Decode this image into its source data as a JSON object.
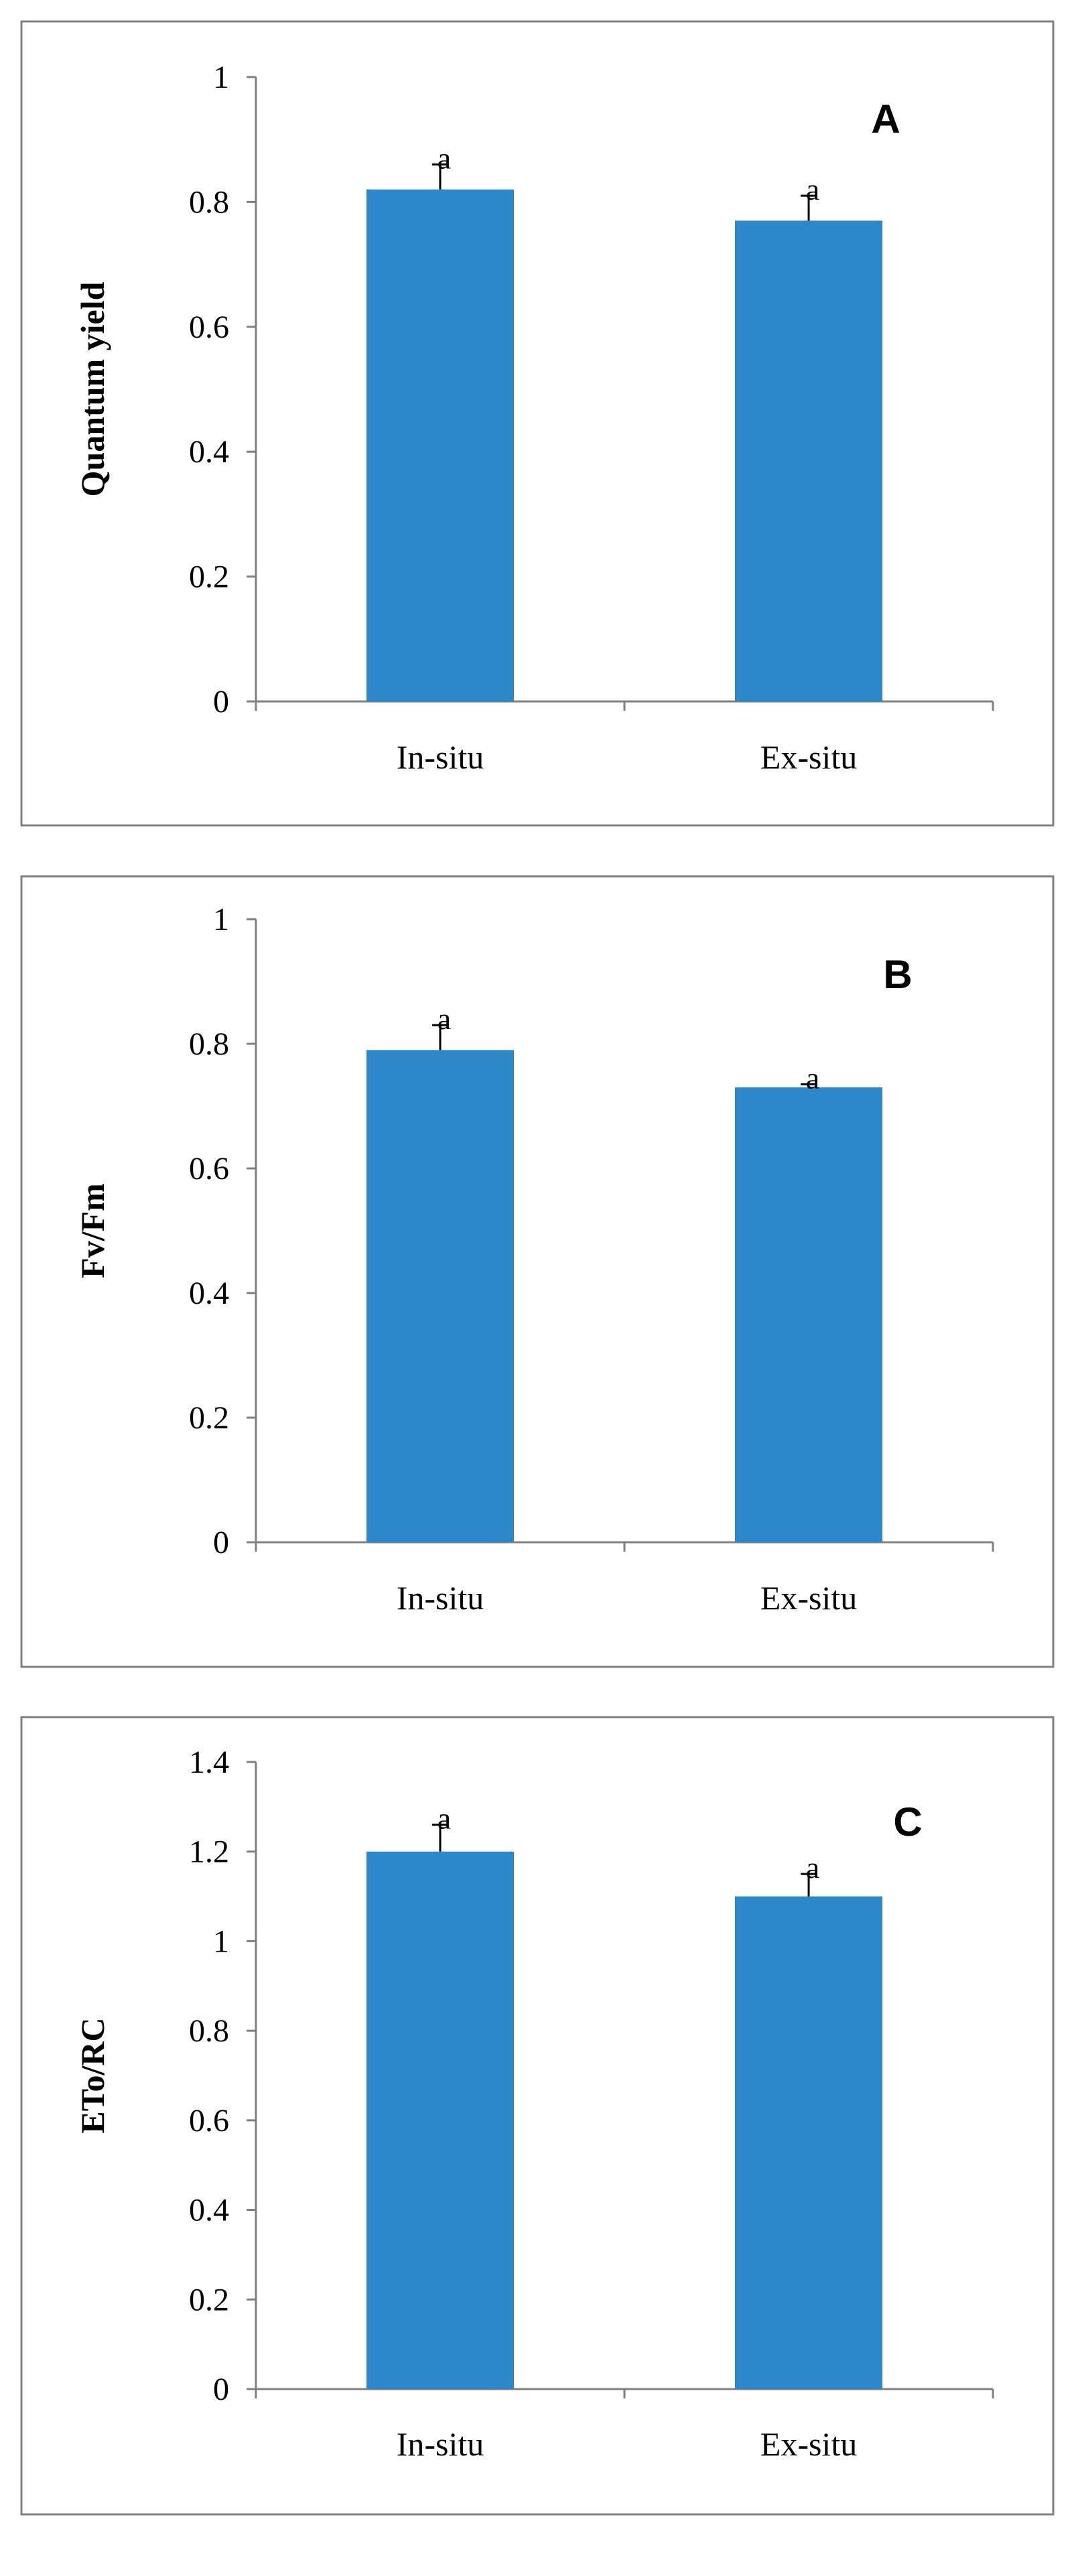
{
  "colors": {
    "bar": "#2e87c8",
    "axis": "#808080",
    "frame": "#808080",
    "text": "#000000"
  },
  "chart_data": [
    {
      "type": "bar",
      "panel_label": "A",
      "ylabel": "Quantum yield",
      "xlabel": "",
      "categories": [
        "In-situ",
        "Ex-situ"
      ],
      "values": [
        0.82,
        0.77
      ],
      "errors": [
        0.04,
        0.04
      ],
      "annotations": [
        "a",
        "a"
      ],
      "ylim": [
        0,
        1
      ],
      "yticks": [
        0,
        0.2,
        0.4,
        0.6,
        0.8,
        1
      ],
      "ytick_labels": [
        "0",
        "0.2",
        "0.4",
        "0.6",
        "0.8",
        "1"
      ],
      "grid": false
    },
    {
      "type": "bar",
      "panel_label": "B",
      "ylabel": "Fv/Fm",
      "xlabel": "",
      "categories": [
        "In-situ",
        "Ex-situ"
      ],
      "values": [
        0.79,
        0.73
      ],
      "errors": [
        0.04,
        0.005
      ],
      "annotations": [
        "a",
        "a"
      ],
      "ylim": [
        0,
        1
      ],
      "yticks": [
        0,
        0.2,
        0.4,
        0.6,
        0.8,
        1
      ],
      "ytick_labels": [
        "0",
        "0.2",
        "0.4",
        "0.6",
        "0.8",
        "1"
      ],
      "grid": false
    },
    {
      "type": "bar",
      "panel_label": "C",
      "ylabel": "ETo/RC",
      "xlabel": "",
      "categories": [
        "In-situ",
        "Ex-situ"
      ],
      "values": [
        1.2,
        1.1
      ],
      "errors": [
        0.06,
        0.05
      ],
      "annotations": [
        "a",
        "a"
      ],
      "ylim": [
        0,
        1.4
      ],
      "yticks": [
        0,
        0.2,
        0.4,
        0.6,
        0.8,
        1,
        1.2,
        1.4
      ],
      "ytick_labels": [
        "0",
        "0.2",
        "0.4",
        "0.6",
        "0.8",
        "1",
        "1.2",
        "1.4"
      ],
      "grid": false
    }
  ]
}
